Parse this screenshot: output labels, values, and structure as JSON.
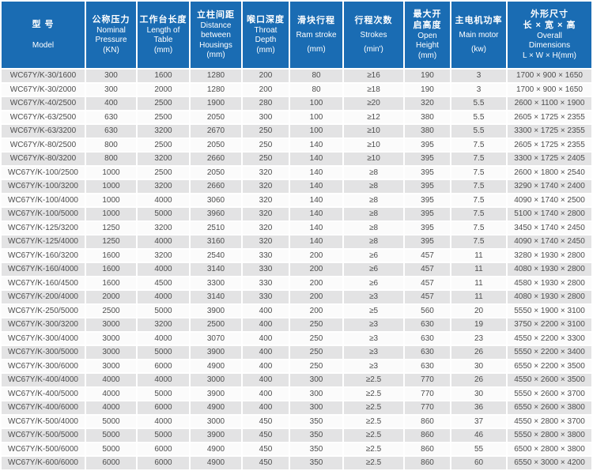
{
  "colors": {
    "header_bg": "#1a6cb3",
    "header_text": "#ffffff",
    "row_alt": "#e3e3e4",
    "row_base": "#fbfbfb",
    "body_text": "#4d4d4d"
  },
  "chart_data": {
    "type": "table",
    "title": "WC67Y/K press brake specification table",
    "columns": [
      {
        "id": "model",
        "zh": [
          "型 号"
        ],
        "en": [
          "Model"
        ]
      },
      {
        "id": "nominal-pressure",
        "zh": [
          "公称压力"
        ],
        "en": [
          "Nominal",
          "Pressure",
          "(KN)"
        ]
      },
      {
        "id": "table-length",
        "zh": [
          "工作台长度"
        ],
        "en": [
          "Length of",
          "Table",
          "(mm)"
        ]
      },
      {
        "id": "housing-distance",
        "zh": [
          "立柱间距"
        ],
        "en": [
          "Distance",
          "between",
          "Housings",
          "(mm)"
        ]
      },
      {
        "id": "throat-depth",
        "zh": [
          "喉口深度"
        ],
        "en": [
          "Throat",
          "Depth",
          "(mm)"
        ]
      },
      {
        "id": "ram-stroke",
        "zh": [
          "滑块行程"
        ],
        "en": [
          "Ram stroke",
          "(mm)"
        ]
      },
      {
        "id": "strokes",
        "zh": [
          "行程次数"
        ],
        "en": [
          "Strokes",
          "(min')"
        ]
      },
      {
        "id": "open-height",
        "zh": [
          "最大开",
          "启高度"
        ],
        "en": [
          "Open",
          "Height",
          "(mm)"
        ]
      },
      {
        "id": "main-motor",
        "zh": [
          "主电机功率"
        ],
        "en": [
          "Main motor",
          "(kw)"
        ]
      },
      {
        "id": "overall-dimensions",
        "zh": [
          "外形尺寸",
          "长 × 宽 × 高"
        ],
        "en": [
          "Overall",
          "Dimensions",
          "L × W × H(mm)"
        ]
      }
    ],
    "rows": [
      [
        "WC67Y/K-30/1600",
        "300",
        "1600",
        "1280",
        "200",
        "80",
        "≥16",
        "190",
        "3",
        "1700 × 900 × 1650"
      ],
      [
        "WC67Y/K-30/2000",
        "300",
        "2000",
        "1280",
        "200",
        "80",
        "≥18",
        "190",
        "3",
        "1700 × 900 × 1650"
      ],
      [
        "WC67Y/K-40/2500",
        "400",
        "2500",
        "1900",
        "280",
        "100",
        "≥20",
        "320",
        "5.5",
        "2600 × 1100 × 1900"
      ],
      [
        "WC67Y/K-63/2500",
        "630",
        "2500",
        "2050",
        "300",
        "100",
        "≥12",
        "380",
        "5.5",
        "2605 × 1725 × 2355"
      ],
      [
        "WC67Y/K-63/3200",
        "630",
        "3200",
        "2670",
        "250",
        "100",
        "≥10",
        "380",
        "5.5",
        "3300 × 1725 × 2355"
      ],
      [
        "WC67Y/K-80/2500",
        "800",
        "2500",
        "2050",
        "250",
        "140",
        "≥10",
        "395",
        "7.5",
        "2605 × 1725 × 2355"
      ],
      [
        "WC67Y/K-80/3200",
        "800",
        "3200",
        "2660",
        "250",
        "140",
        "≥10",
        "395",
        "7.5",
        "3300 × 1725 × 2405"
      ],
      [
        "WC67Y/K-100/2500",
        "1000",
        "2500",
        "2050",
        "320",
        "140",
        "≥8",
        "395",
        "7.5",
        "2600 × 1800 × 2540"
      ],
      [
        "WC67Y/K-100/3200",
        "1000",
        "3200",
        "2660",
        "320",
        "140",
        "≥8",
        "395",
        "7.5",
        "3290 × 1740 × 2400"
      ],
      [
        "WC67Y/K-100/4000",
        "1000",
        "4000",
        "3060",
        "320",
        "140",
        "≥8",
        "395",
        "7.5",
        "4090 × 1740 × 2500"
      ],
      [
        "WC67Y/K-100/5000",
        "1000",
        "5000",
        "3960",
        "320",
        "140",
        "≥8",
        "395",
        "7.5",
        "5100 × 1740 × 2800"
      ],
      [
        "WC67Y/K-125/3200",
        "1250",
        "3200",
        "2510",
        "320",
        "140",
        "≥8",
        "395",
        "7.5",
        "3450 × 1740 × 2450"
      ],
      [
        "WC67Y/K-125/4000",
        "1250",
        "4000",
        "3160",
        "320",
        "140",
        "≥8",
        "395",
        "7.5",
        "4090 × 1740 × 2450"
      ],
      [
        "WC67Y/K-160/3200",
        "1600",
        "3200",
        "2540",
        "330",
        "200",
        "≥6",
        "457",
        "11",
        "3280 × 1930 × 2800"
      ],
      [
        "WC67Y/K-160/4000",
        "1600",
        "4000",
        "3140",
        "330",
        "200",
        "≥6",
        "457",
        "11",
        "4080 × 1930 × 2800"
      ],
      [
        "WC67Y/K-160/4500",
        "1600",
        "4500",
        "3300",
        "330",
        "200",
        "≥6",
        "457",
        "11",
        "4580 × 1930 × 2800"
      ],
      [
        "WC67Y/K-200/4000",
        "2000",
        "4000",
        "3140",
        "330",
        "200",
        "≥3",
        "457",
        "11",
        "4080 × 1930 × 2800"
      ],
      [
        "WC67Y/K-250/5000",
        "2500",
        "5000",
        "3900",
        "400",
        "200",
        "≥5",
        "560",
        "20",
        "5550 × 1900 × 3100"
      ],
      [
        "WC67Y/K-300/3200",
        "3000",
        "3200",
        "2500",
        "400",
        "250",
        "≥3",
        "630",
        "19",
        "3750 × 2200 × 3100"
      ],
      [
        "WC67Y/K-300/4000",
        "3000",
        "4000",
        "3070",
        "400",
        "250",
        "≥3",
        "630",
        "23",
        "4550 × 2200 × 3300"
      ],
      [
        "WC67Y/K-300/5000",
        "3000",
        "5000",
        "3900",
        "400",
        "250",
        "≥3",
        "630",
        "26",
        "5550 × 2200 × 3400"
      ],
      [
        "WC67Y/K-300/6000",
        "3000",
        "6000",
        "4900",
        "400",
        "250",
        "≥3",
        "630",
        "30",
        "6550 × 2200 × 3500"
      ],
      [
        "WC67Y/K-400/4000",
        "4000",
        "4000",
        "3000",
        "400",
        "300",
        "≥2.5",
        "770",
        "26",
        "4550 × 2600 × 3500"
      ],
      [
        "WC67Y/K-400/5000",
        "4000",
        "5000",
        "3900",
        "400",
        "300",
        "≥2.5",
        "770",
        "30",
        "5550 × 2600 × 3700"
      ],
      [
        "WC67Y/K-400/6000",
        "4000",
        "6000",
        "4900",
        "400",
        "300",
        "≥2.5",
        "770",
        "36",
        "6550 × 2600 × 3800"
      ],
      [
        "WC67Y/K-500/4000",
        "5000",
        "4000",
        "3000",
        "450",
        "350",
        "≥2.5",
        "860",
        "37",
        "4550 × 2800 × 3700"
      ],
      [
        "WC67Y/K-500/5000",
        "5000",
        "5000",
        "3900",
        "450",
        "350",
        "≥2.5",
        "860",
        "46",
        "5550 × 2800 × 3800"
      ],
      [
        "WC67Y/K-500/6000",
        "5000",
        "6000",
        "4900",
        "450",
        "350",
        "≥2.5",
        "860",
        "55",
        "6500 × 2800 × 3800"
      ],
      [
        "WC67Y/K-600/6000",
        "6000",
        "6000",
        "4900",
        "450",
        "350",
        "≥2.5",
        "860",
        "60",
        "6550 × 3000 × 4200"
      ]
    ]
  }
}
